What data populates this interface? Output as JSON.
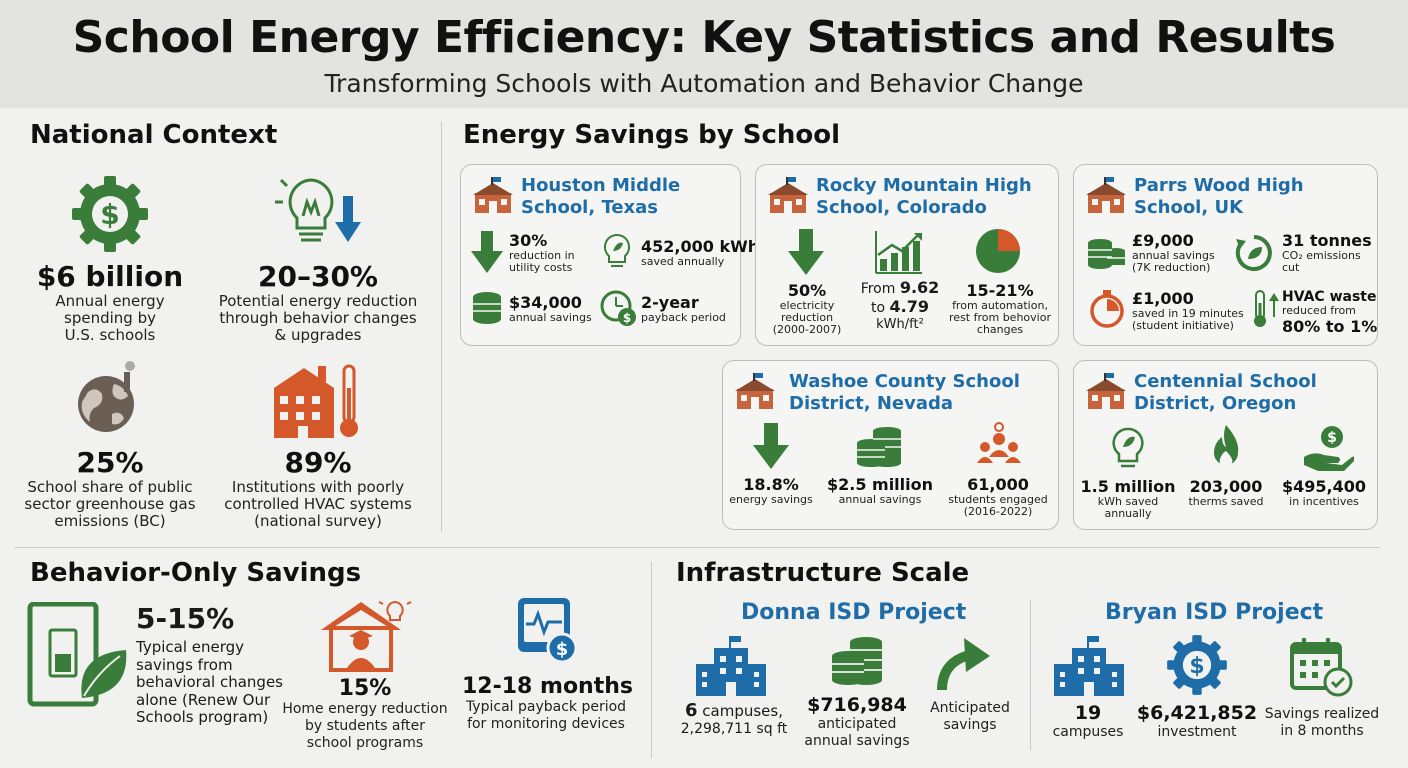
{
  "header": {
    "title": "School Energy Efficiency: Key Statistics and Results",
    "subtitle": "Transforming Schools with Automation and Behavior Change"
  },
  "national": {
    "title": "National Context",
    "stats": [
      {
        "value": "$6 billion",
        "desc": "Annual energy spending by U.S. schools",
        "icon": "dollar-gear-icon"
      },
      {
        "value": "20–30%",
        "desc": "Potential energy reduction through behavior changes & upgrades",
        "icon": "lightbulb-down-icon"
      },
      {
        "value": "25%",
        "desc": "School share of public sector greenhouse gas emissions (BC)",
        "icon": "globe-factory-icon"
      },
      {
        "value": "89%",
        "desc": "Institutions with poorly controlled HVAC systems (national survey)",
        "icon": "building-thermometer-icon"
      }
    ]
  },
  "savings": {
    "title": "Energy Savings by School",
    "houston": {
      "name": "Houston Middle School, Texas",
      "items": [
        {
          "value": "30%",
          "label": "reduction in utility costs"
        },
        {
          "value": "452,000 kWh",
          "label": "saved annually"
        },
        {
          "value": "$34,000",
          "label": "annual savings"
        },
        {
          "value": "2-year",
          "label": "payback period"
        }
      ]
    },
    "rocky": {
      "name": "Rocky Mountain High School, Colorado",
      "items": [
        {
          "value": "50%",
          "label": "electricity reduction (2000-2007)"
        },
        {
          "value_pre": "From ",
          "value_a": "9.62",
          "value_mid": " to ",
          "value_b": "4.79",
          "label": "kWh/ft²"
        },
        {
          "value": "15-21%",
          "label": "from automation, rest from behovior changes"
        }
      ]
    },
    "parrs": {
      "name": "Parrs Wood High School, UK",
      "items": [
        {
          "value": "£9,000",
          "label": "annual savings (7K reduction)"
        },
        {
          "value": "31 tonnes",
          "label": "CO₂ emissions cut"
        },
        {
          "value": "£1,000",
          "label": "saved in 19 minutes (student initiative)"
        },
        {
          "value": "HVAC waste",
          "label": "reduced from",
          "value2": "80% to 1%"
        }
      ]
    },
    "washoe": {
      "name": "Washoe County School District, Nevada",
      "items": [
        {
          "value": "18.8%",
          "label": "energy savings"
        },
        {
          "value": "$2.5 million",
          "label": "annual savings"
        },
        {
          "value": "61,000",
          "label": "students engaged (2016-2022)"
        }
      ]
    },
    "centennial": {
      "name": "Centennial School District, Oregon",
      "items": [
        {
          "value": "1.5 million",
          "label": "kWh saved annually"
        },
        {
          "value": "203,000",
          "label": "therms saved"
        },
        {
          "value": "$495,400",
          "label": "in incentives"
        }
      ]
    }
  },
  "behavior": {
    "title": "Behavior-Only Savings",
    "a": {
      "value": "5-15%",
      "desc": "Typical energy savings from behavioral changes alone (Renew Our Schools program)"
    },
    "b": {
      "value": "15%",
      "desc": "Home energy reduction by students after school programs"
    },
    "c": {
      "value": "12-18 months",
      "desc": "Typical payback period for monitoring devices"
    }
  },
  "infra": {
    "title": "Infrastructure Scale",
    "donna": {
      "name": "Donna ISD Project",
      "a_value": "6",
      "a_label": " campuses,",
      "a_label2": "2,298,711 sq ft",
      "b_value": "$716,984",
      "b_label": "anticipated annual savings",
      "c_label": "Anticipated savings"
    },
    "bryan": {
      "name": "Bryan ISD Project",
      "a_value": "19",
      "a_label": "campuses",
      "b_value": "$6,421,852",
      "b_label": "investment",
      "c_label": "Savings realized in 8 months"
    }
  },
  "colors": {
    "green": "#3a7d3a",
    "blue": "#1f6da8",
    "orange": "#d4582a"
  }
}
